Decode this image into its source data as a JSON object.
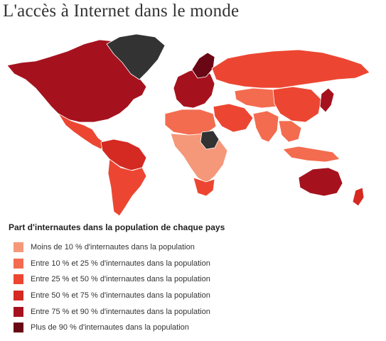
{
  "title": "L'accès à Internet dans le monde",
  "legend": {
    "title": "Part d'internautes dans la population de chaque pays",
    "items": [
      {
        "label": "Moins de 10 % d'internautes dans la population",
        "color": "#f5987a"
      },
      {
        "label": "Entre 10 % et 25 % d'internautes dans la population",
        "color": "#f36c4f"
      },
      {
        "label": "Entre 25 % et 50 % d'internautes dans la population",
        "color": "#ec4632"
      },
      {
        "label": "Entre 50 % et 75 % d'internautes dans la population",
        "color": "#d42a22"
      },
      {
        "label": "Entre 75 % et 90 % d'internautes dans la population",
        "color": "#a5121e"
      },
      {
        "label": "Plus de 90 % d'internautes dans la population",
        "color": "#6a0714"
      }
    ]
  },
  "no_data_color": "#333333",
  "regions": [
    {
      "name": "north-america-region",
      "color": "#a5121e"
    },
    {
      "name": "greenland-region",
      "color": "#333333"
    },
    {
      "name": "mexico-central-america-region",
      "color": "#ec4632"
    },
    {
      "name": "south-america-region",
      "color": "#ec4632"
    },
    {
      "name": "south-america-north-region",
      "color": "#d42a22"
    },
    {
      "name": "europe-region",
      "color": "#a5121e"
    },
    {
      "name": "scandinavia-region",
      "color": "#6a0714"
    },
    {
      "name": "russia-region",
      "color": "#ec4632"
    },
    {
      "name": "asia-region",
      "color": "#ec4632"
    },
    {
      "name": "china-region",
      "color": "#ec4632"
    },
    {
      "name": "central-asia-region",
      "color": "#f36c4f"
    },
    {
      "name": "middle-east-region",
      "color": "#ec4632"
    },
    {
      "name": "north-africa-region",
      "color": "#f36c4f"
    },
    {
      "name": "africa-region",
      "color": "#f5987a"
    },
    {
      "name": "sudan-region",
      "color": "#333333"
    },
    {
      "name": "india-region",
      "color": "#f36c4f"
    },
    {
      "name": "southeast-asia-region",
      "color": "#f36c4f"
    },
    {
      "name": "japan-korea-region",
      "color": "#a5121e"
    },
    {
      "name": "indonesia-region",
      "color": "#f36c4f"
    },
    {
      "name": "australia-region",
      "color": "#a5121e"
    },
    {
      "name": "new-zealand-region",
      "color": "#d42a22"
    },
    {
      "name": "southern-africa-region",
      "color": "#ec4632"
    }
  ]
}
